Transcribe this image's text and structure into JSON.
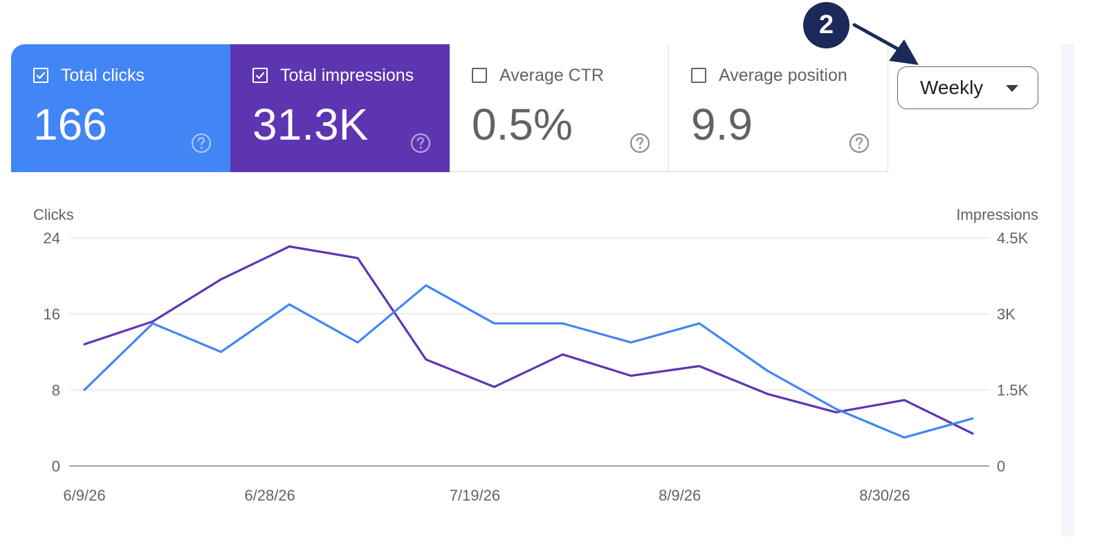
{
  "metrics": [
    {
      "label": "Total clicks",
      "value": "166",
      "checked": true,
      "color": "#4285f4"
    },
    {
      "label": "Total impressions",
      "value": "31.3K",
      "checked": true,
      "color": "#5e35b1"
    },
    {
      "label": "Average CTR",
      "value": "0.5%",
      "checked": false,
      "color": "#ffffff"
    },
    {
      "label": "Average position",
      "value": "9.9",
      "checked": false,
      "color": "#ffffff"
    }
  ],
  "help_icon": "question-circle-icon",
  "checkbox_icon": "checkbox-icon",
  "period_select": {
    "selected": "Weekly",
    "icon": "arrow-drop-down-icon"
  },
  "annotation": {
    "number": "2",
    "color": "#1b2a58"
  },
  "chart_data": {
    "type": "line",
    "x": [
      "6/9/26",
      "6/16/26",
      "6/23/26",
      "6/30/26",
      "7/7/26",
      "7/14/26",
      "7/21/26",
      "7/28/26",
      "8/4/26",
      "8/11/26",
      "8/18/26",
      "8/25/26",
      "9/1/26",
      "9/8/26"
    ],
    "x_tick_labels": [
      "6/9/26",
      "6/28/26",
      "7/19/26",
      "8/9/26",
      "8/30/26"
    ],
    "x_tick_dates": [
      "2026-06-09",
      "2026-06-28",
      "2026-07-19",
      "2026-08-09",
      "2026-08-30"
    ],
    "y_left": {
      "label": "Clicks",
      "ticks": [
        "0",
        "8",
        "16",
        "24"
      ],
      "range": [
        0,
        24
      ]
    },
    "y_right": {
      "label": "Impressions",
      "ticks": [
        "0",
        "1.5K",
        "3K",
        "4.5K"
      ],
      "range": [
        0,
        4500
      ]
    },
    "series": [
      {
        "name": "Total clicks",
        "axis": "left",
        "color": "#4285f4",
        "values": [
          8,
          15,
          12,
          17,
          13,
          19,
          15,
          15,
          13,
          15,
          10,
          6,
          3,
          5
        ]
      },
      {
        "name": "Total impressions",
        "axis": "right",
        "color": "#5e35b1",
        "values": [
          2400,
          2850,
          3680,
          4330,
          4100,
          2100,
          1560,
          2200,
          1780,
          1970,
          1420,
          1060,
          1300,
          640
        ]
      }
    ],
    "grid": true
  }
}
